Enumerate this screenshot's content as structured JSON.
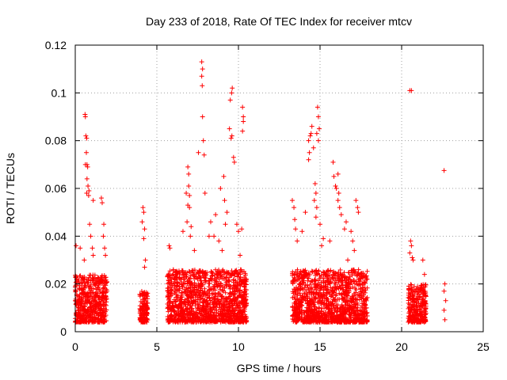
{
  "chart_data": {
    "type": "scatter",
    "title": "Day 233 of 2018, Rate Of TEC Index for receiver mtcv",
    "xlabel": "GPS time / hours",
    "ylabel": "ROTI / TECUs",
    "xlim": [
      0,
      25
    ],
    "ylim": [
      0,
      0.12
    ],
    "x_ticks": [
      "0",
      "5",
      "10",
      "15",
      "20",
      "25"
    ],
    "y_ticks": [
      "0",
      "0.02",
      "0.04",
      "0.06",
      "0.08",
      "0.1",
      "0.12"
    ],
    "grid": true,
    "marker": "+",
    "colors": {
      "points": "#ff0000",
      "grid": "#a0a0a0",
      "frame": "#000000"
    },
    "clusters": [
      {
        "x_range": [
          0.0,
          1.95
        ],
        "y_range": [
          0.004,
          0.024
        ]
      },
      {
        "x_range": [
          3.95,
          4.45
        ],
        "y_range": [
          0.004,
          0.017
        ]
      },
      {
        "x_range": [
          5.65,
          7.5
        ],
        "y_range": [
          0.004,
          0.026
        ]
      },
      {
        "x_range": [
          7.5,
          10.5
        ],
        "y_range": [
          0.004,
          0.026
        ]
      },
      {
        "x_range": [
          13.3,
          17.9
        ],
        "y_range": [
          0.004,
          0.026
        ]
      },
      {
        "x_range": [
          20.4,
          21.5
        ],
        "y_range": [
          0.004,
          0.02
        ]
      }
    ],
    "outliers": [
      [
        0.05,
        0.036
      ],
      [
        0.3,
        0.035
      ],
      [
        0.55,
        0.03
      ],
      [
        0.6,
        0.091
      ],
      [
        0.62,
        0.09
      ],
      [
        0.65,
        0.082
      ],
      [
        0.7,
        0.081
      ],
      [
        0.68,
        0.075
      ],
      [
        0.62,
        0.07
      ],
      [
        0.72,
        0.07
      ],
      [
        0.76,
        0.069
      ],
      [
        0.72,
        0.064
      ],
      [
        0.78,
        0.061
      ],
      [
        0.84,
        0.059
      ],
      [
        0.82,
        0.057
      ],
      [
        0.7,
        0.058
      ],
      [
        0.88,
        0.045
      ],
      [
        0.95,
        0.04
      ],
      [
        1.05,
        0.035
      ],
      [
        1.1,
        0.032
      ],
      [
        1.1,
        0.055
      ],
      [
        1.6,
        0.056
      ],
      [
        1.65,
        0.054
      ],
      [
        1.75,
        0.045
      ],
      [
        1.72,
        0.04
      ],
      [
        1.8,
        0.035
      ],
      [
        1.85,
        0.032
      ],
      [
        4.1,
        0.046
      ],
      [
        4.15,
        0.052
      ],
      [
        4.2,
        0.05
      ],
      [
        4.25,
        0.043
      ],
      [
        4.2,
        0.039
      ],
      [
        4.3,
        0.03
      ],
      [
        4.25,
        0.027
      ],
      [
        5.75,
        0.036
      ],
      [
        5.8,
        0.035
      ],
      [
        6.9,
        0.069
      ],
      [
        6.95,
        0.066
      ],
      [
        6.95,
        0.061
      ],
      [
        7.0,
        0.057
      ],
      [
        6.8,
        0.058
      ],
      [
        6.9,
        0.053
      ],
      [
        7.0,
        0.052
      ],
      [
        6.85,
        0.046
      ],
      [
        7.05,
        0.04
      ],
      [
        7.1,
        0.044
      ],
      [
        6.6,
        0.042
      ],
      [
        7.3,
        0.034
      ],
      [
        7.75,
        0.113
      ],
      [
        7.8,
        0.11
      ],
      [
        7.75,
        0.107
      ],
      [
        7.78,
        0.103
      ],
      [
        7.8,
        0.09
      ],
      [
        7.85,
        0.08
      ],
      [
        7.55,
        0.075
      ],
      [
        7.9,
        0.074
      ],
      [
        7.95,
        0.058
      ],
      [
        8.2,
        0.04
      ],
      [
        8.3,
        0.046
      ],
      [
        8.5,
        0.04
      ],
      [
        8.9,
        0.06
      ],
      [
        9.1,
        0.065
      ],
      [
        9.15,
        0.055
      ],
      [
        9.3,
        0.05
      ],
      [
        9.2,
        0.045
      ],
      [
        9.45,
        0.085
      ],
      [
        9.55,
        0.081
      ],
      [
        9.6,
        0.082
      ],
      [
        9.58,
        0.1
      ],
      [
        9.62,
        0.102
      ],
      [
        9.5,
        0.097
      ],
      [
        9.7,
        0.073
      ],
      [
        9.75,
        0.071
      ],
      [
        9.9,
        0.045
      ],
      [
        10.0,
        0.042
      ],
      [
        10.1,
        0.032
      ],
      [
        10.2,
        0.043
      ],
      [
        10.25,
        0.094
      ],
      [
        10.3,
        0.09
      ],
      [
        10.25,
        0.084
      ],
      [
        10.3,
        0.088
      ],
      [
        8.6,
        0.049
      ],
      [
        8.8,
        0.038
      ],
      [
        9.0,
        0.034
      ],
      [
        13.3,
        0.055
      ],
      [
        13.4,
        0.052
      ],
      [
        13.45,
        0.047
      ],
      [
        13.5,
        0.043
      ],
      [
        13.6,
        0.038
      ],
      [
        13.9,
        0.042
      ],
      [
        14.1,
        0.05
      ],
      [
        14.3,
        0.08
      ],
      [
        14.4,
        0.082
      ],
      [
        14.5,
        0.086
      ],
      [
        14.45,
        0.083
      ],
      [
        14.6,
        0.077
      ],
      [
        14.35,
        0.075
      ],
      [
        14.3,
        0.072
      ],
      [
        14.85,
        0.094
      ],
      [
        14.9,
        0.09
      ],
      [
        14.95,
        0.085
      ],
      [
        14.8,
        0.083
      ],
      [
        14.9,
        0.08
      ],
      [
        14.7,
        0.062
      ],
      [
        14.75,
        0.058
      ],
      [
        14.65,
        0.055
      ],
      [
        14.8,
        0.052
      ],
      [
        14.75,
        0.048
      ],
      [
        15.0,
        0.045
      ],
      [
        15.1,
        0.036
      ],
      [
        15.2,
        0.039
      ],
      [
        15.6,
        0.038
      ],
      [
        15.8,
        0.071
      ],
      [
        15.85,
        0.065
      ],
      [
        16.1,
        0.066
      ],
      [
        16.0,
        0.06
      ],
      [
        16.15,
        0.058
      ],
      [
        15.95,
        0.061
      ],
      [
        16.1,
        0.055
      ],
      [
        16.2,
        0.052
      ],
      [
        16.3,
        0.049
      ],
      [
        16.5,
        0.043
      ],
      [
        16.6,
        0.046
      ],
      [
        16.9,
        0.042
      ],
      [
        17.0,
        0.038
      ],
      [
        17.2,
        0.055
      ],
      [
        17.3,
        0.052
      ],
      [
        17.35,
        0.05
      ],
      [
        17.1,
        0.034
      ],
      [
        16.7,
        0.03
      ],
      [
        20.5,
        0.101
      ],
      [
        20.6,
        0.101
      ],
      [
        20.55,
        0.038
      ],
      [
        20.6,
        0.036
      ],
      [
        20.5,
        0.033
      ],
      [
        20.65,
        0.031
      ],
      [
        20.7,
        0.03
      ],
      [
        21.3,
        0.03
      ],
      [
        21.4,
        0.024
      ],
      [
        22.6,
        0.0675
      ],
      [
        22.65,
        0.02
      ],
      [
        22.6,
        0.017
      ],
      [
        22.7,
        0.013
      ],
      [
        22.6,
        0.009
      ],
      [
        22.65,
        0.005
      ]
    ]
  }
}
